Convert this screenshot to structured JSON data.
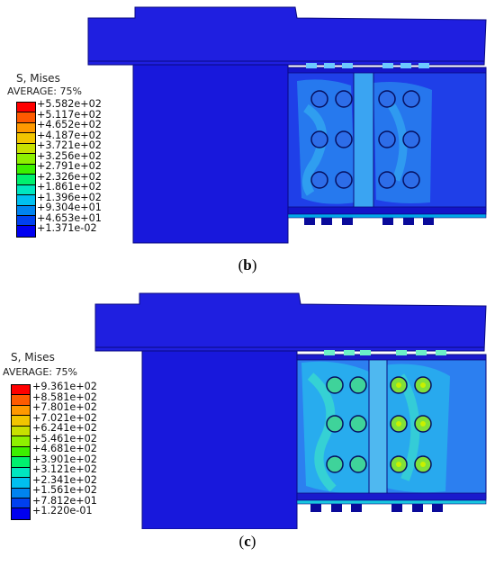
{
  "panels": [
    {
      "legend": {
        "title": "S, Mises",
        "subtitle": "AVERAGE: 75%",
        "values": [
          "+5.582e+02",
          "+5.117e+02",
          "+4.652e+02",
          "+4.187e+02",
          "+3.721e+02",
          "+3.256e+02",
          "+2.791e+02",
          "+2.326e+02",
          "+1.861e+02",
          "+1.396e+02",
          "+9.304e+01",
          "+4.653e+01",
          "+1.371e-02"
        ]
      },
      "caption": {
        "open": "(",
        "letter": "b",
        "close": ")"
      }
    },
    {
      "legend": {
        "title": "S, Mises",
        "subtitle": "AVERAGE: 75%",
        "values": [
          "+9.361e+02",
          "+8.581e+02",
          "+7.801e+02",
          "+7.021e+02",
          "+6.241e+02",
          "+5.461e+02",
          "+4.681e+02",
          "+3.901e+02",
          "+3.121e+02",
          "+2.341e+02",
          "+1.561e+02",
          "+7.812e+01",
          "+1.220e-01"
        ]
      },
      "caption": {
        "open": "(",
        "letter": "c",
        "close": ")"
      }
    }
  ],
  "colors": {
    "scale": [
      "#ff0000",
      "#ff5a00",
      "#ff9900",
      "#f2c500",
      "#c8e000",
      "#8ef000",
      "#3cf000",
      "#00f06e",
      "#00e6c0",
      "#00c0f0",
      "#0083f0",
      "#0040f0",
      "#0000f0"
    ],
    "model_blue": "#1a1ad8",
    "model_dark": "#0c0c8a"
  }
}
